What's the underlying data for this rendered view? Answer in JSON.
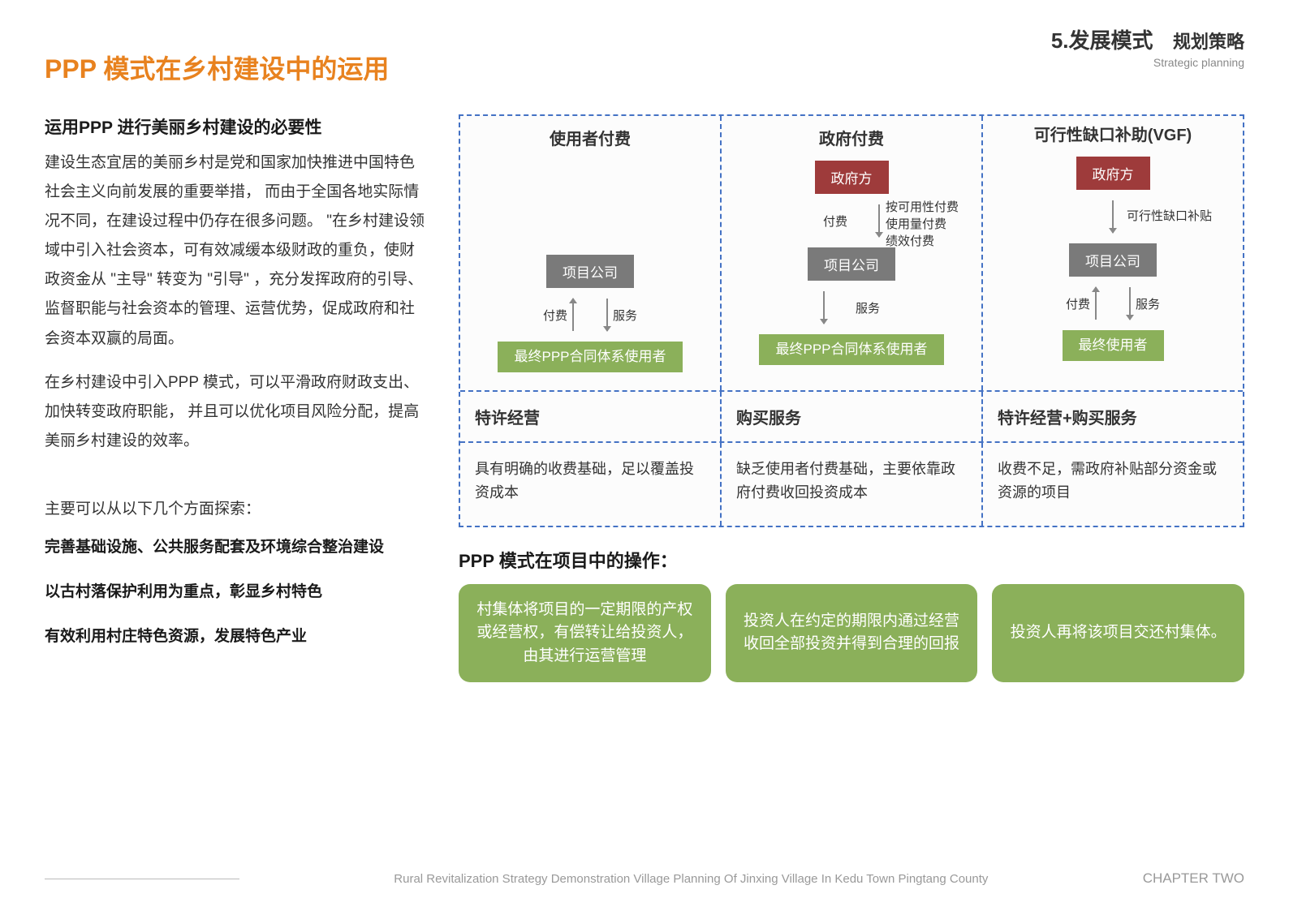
{
  "header": {
    "main_title": "PPP 模式在乡村建设中的运用",
    "section_number": "5.发展模式",
    "section_cn": "规划策略",
    "section_en": "Strategic planning"
  },
  "left": {
    "sub_heading": "运用PPP 进行美丽乡村建设的必要性",
    "para1": "建设生态宜居的美丽乡村是党和国家加快推进中国特色社会主义向前发展的重要举措， 而由于全国各地实际情况不同，在建设过程中仍存在很多问题。 \"在乡村建设领域中引入社会资本，可有效减缓本级财政的重负，使财政资金从 \"主导\" 转变为 \"引导\" ，充分发挥政府的引导、监督职能与社会资本的管理、运营优势，促成政府和社会资本双赢的局面。",
    "para2": "在乡村建设中引入PPP 模式，可以平滑政府财政支出、加快转变政府职能， 并且可以优化项目风险分配，提高美丽乡村建设的效率。",
    "explore_intro": "主要可以从以下几个方面探索：",
    "explore_items": [
      "完善基础设施、公共服务配套及环境综合整治建设",
      "以古村落保护利用为重点，彰显乡村特色",
      "有效利用村庄特色资源，发展特色产业"
    ]
  },
  "diagram": {
    "columns": [
      {
        "title": "使用者付费",
        "gov": null,
        "note_upper": null,
        "company": "项目公司",
        "lower_left_label": "付费",
        "lower_right_label": "服务",
        "end": "最终PPP合同体系使用者"
      },
      {
        "title": "政府付费",
        "gov": "政府方",
        "note_upper": "按可用性付费\n使用量付费\n绩效付费",
        "upper_label": "付费",
        "company": "项目公司",
        "lower_right_label": "服务",
        "end": "最终PPP合同体系使用者"
      },
      {
        "title": "可行性缺口补助(VGF)",
        "gov": "政府方",
        "note_upper": "可行性缺口补贴",
        "company": "项目公司",
        "lower_left_label": "付费",
        "lower_right_label": "服务",
        "end": "最终使用者"
      }
    ],
    "mid": [
      "特许经营",
      "购买服务",
      "特许经营+购买服务"
    ],
    "bottom": [
      "具有明确的收费基础，足以覆盖投资成本",
      "缺乏使用者付费基础，主要依靠政府付费收回投资成本",
      "收费不足，需政府补贴部分资金或资源的项目"
    ]
  },
  "ops": {
    "title": "PPP 模式在项目中的操作：",
    "boxes": [
      "村集体将项目的一定期限的产权或经营权，有偿转让给投资人，由其进行运营管理",
      "投资人在约定的期限内通过经营收回全部投资并得到合理的回报",
      "投资人再将该项目交还村集体。"
    ]
  },
  "footer": {
    "text": "Rural Revitalization Strategy Demonstration Village Planning Of Jinxing Village In  Kedu Town Pingtang County",
    "chapter": "CHAPTER TWO"
  },
  "colors": {
    "accent": "#e8821f",
    "box_red": "#9e3b3b",
    "box_gray": "#7a7a7a",
    "box_green": "#8bb05a",
    "border_dash": "#4472c4"
  }
}
